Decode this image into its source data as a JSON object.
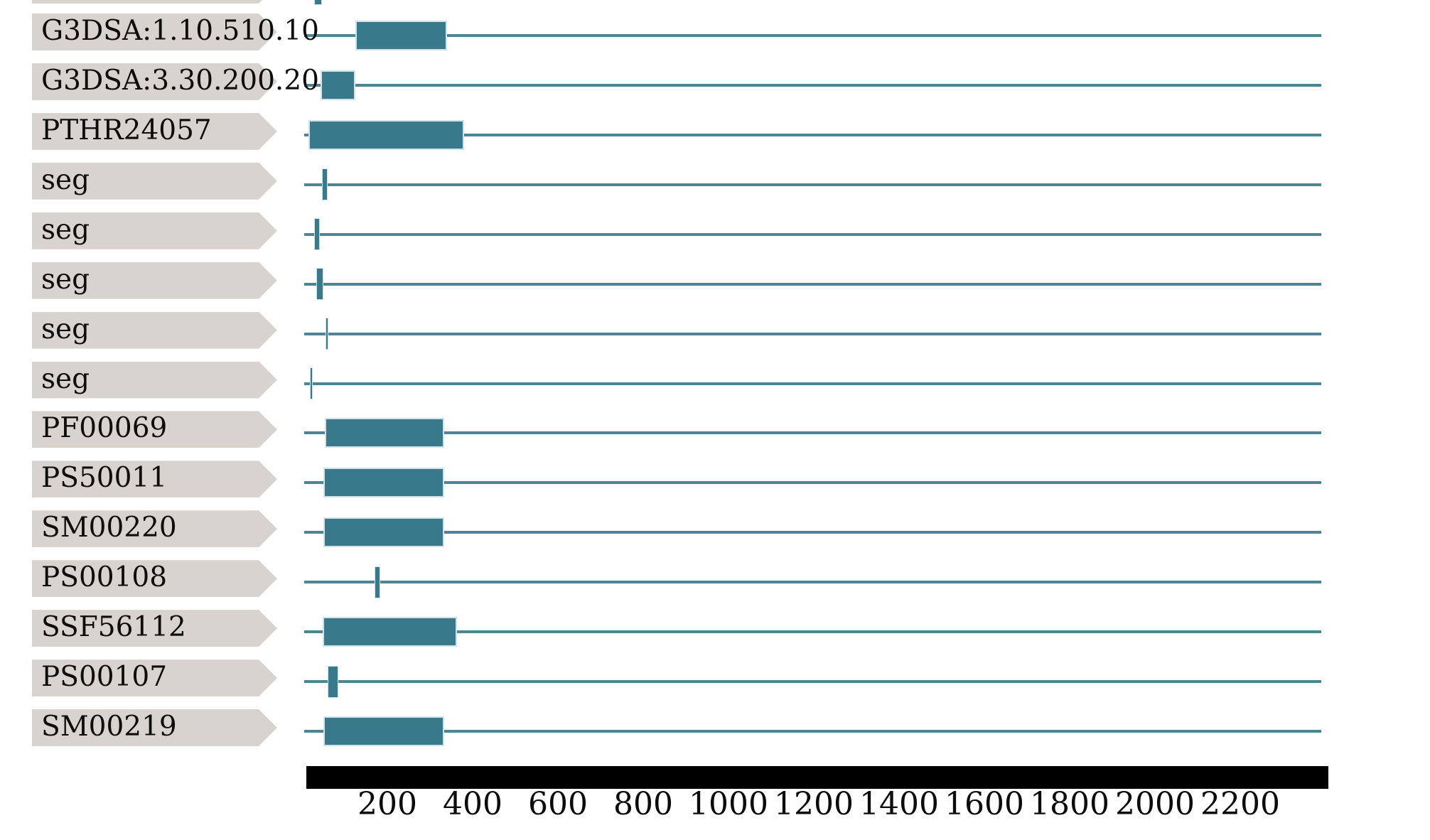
{
  "colors": {
    "background": "#ffffff",
    "feature_fill": "#387a8c",
    "feature_border": "#d2e2e6",
    "backbone_line": "#4d8496",
    "label_tag_bg": "#d9d3d0",
    "label_text": "#0d0d0d",
    "axis_bar": "#000000",
    "axis_text": "#0c0c0c"
  },
  "chart_data": {
    "type": "bar",
    "subtype": "protein-domain-architecture-tracks",
    "title": "",
    "xlabel": "",
    "ylabel": "",
    "legend": "none",
    "grid": false,
    "axis": {
      "unit": "residue",
      "min": 0,
      "max": 2400,
      "ticks": [
        200,
        400,
        600,
        800,
        1000,
        1200,
        1400,
        1600,
        1800,
        2000,
        2200
      ]
    },
    "backbone": {
      "start": 5,
      "end": 2390
    },
    "tracks": [
      {
        "label": "",
        "partial": true,
        "features": [
          {
            "shape": "tick",
            "start": 28,
            "end": 47
          }
        ]
      },
      {
        "label": "G3DSA:1.10.510.10",
        "partial": false,
        "features": [
          {
            "shape": "box",
            "start": 125,
            "end": 340
          }
        ]
      },
      {
        "label": "G3DSA:3.30.200.20",
        "partial": false,
        "features": [
          {
            "shape": "box",
            "start": 43,
            "end": 125
          }
        ]
      },
      {
        "label": "PTHR24057",
        "partial": false,
        "features": [
          {
            "shape": "box",
            "start": 15,
            "end": 380
          }
        ]
      },
      {
        "label": "seg",
        "partial": false,
        "features": [
          {
            "shape": "tick",
            "start": 47,
            "end": 60
          }
        ]
      },
      {
        "label": "seg",
        "partial": false,
        "features": [
          {
            "shape": "tick",
            "start": 28,
            "end": 42
          }
        ]
      },
      {
        "label": "seg",
        "partial": false,
        "features": [
          {
            "shape": "tick",
            "start": 33,
            "end": 50
          }
        ]
      },
      {
        "label": "seg",
        "partial": false,
        "features": [
          {
            "shape": "tick",
            "start": 55,
            "end": 62
          }
        ]
      },
      {
        "label": "seg",
        "partial": false,
        "features": [
          {
            "shape": "tick",
            "start": 18,
            "end": 25
          }
        ]
      },
      {
        "label": "PF00069",
        "partial": false,
        "features": [
          {
            "shape": "box",
            "start": 53,
            "end": 333
          }
        ]
      },
      {
        "label": "PS50011",
        "partial": false,
        "features": [
          {
            "shape": "box",
            "start": 50,
            "end": 333
          }
        ]
      },
      {
        "label": "SM00220",
        "partial": false,
        "features": [
          {
            "shape": "box",
            "start": 50,
            "end": 333
          }
        ]
      },
      {
        "label": "PS00108",
        "partial": false,
        "features": [
          {
            "shape": "tick",
            "start": 170,
            "end": 183
          }
        ]
      },
      {
        "label": "SSF56112",
        "partial": false,
        "features": [
          {
            "shape": "box",
            "start": 48,
            "end": 363
          }
        ]
      },
      {
        "label": "PS00107",
        "partial": false,
        "features": [
          {
            "shape": "tick",
            "start": 60,
            "end": 85
          }
        ]
      },
      {
        "label": "SM00219",
        "partial": false,
        "features": [
          {
            "shape": "box",
            "start": 50,
            "end": 333
          }
        ]
      }
    ]
  }
}
